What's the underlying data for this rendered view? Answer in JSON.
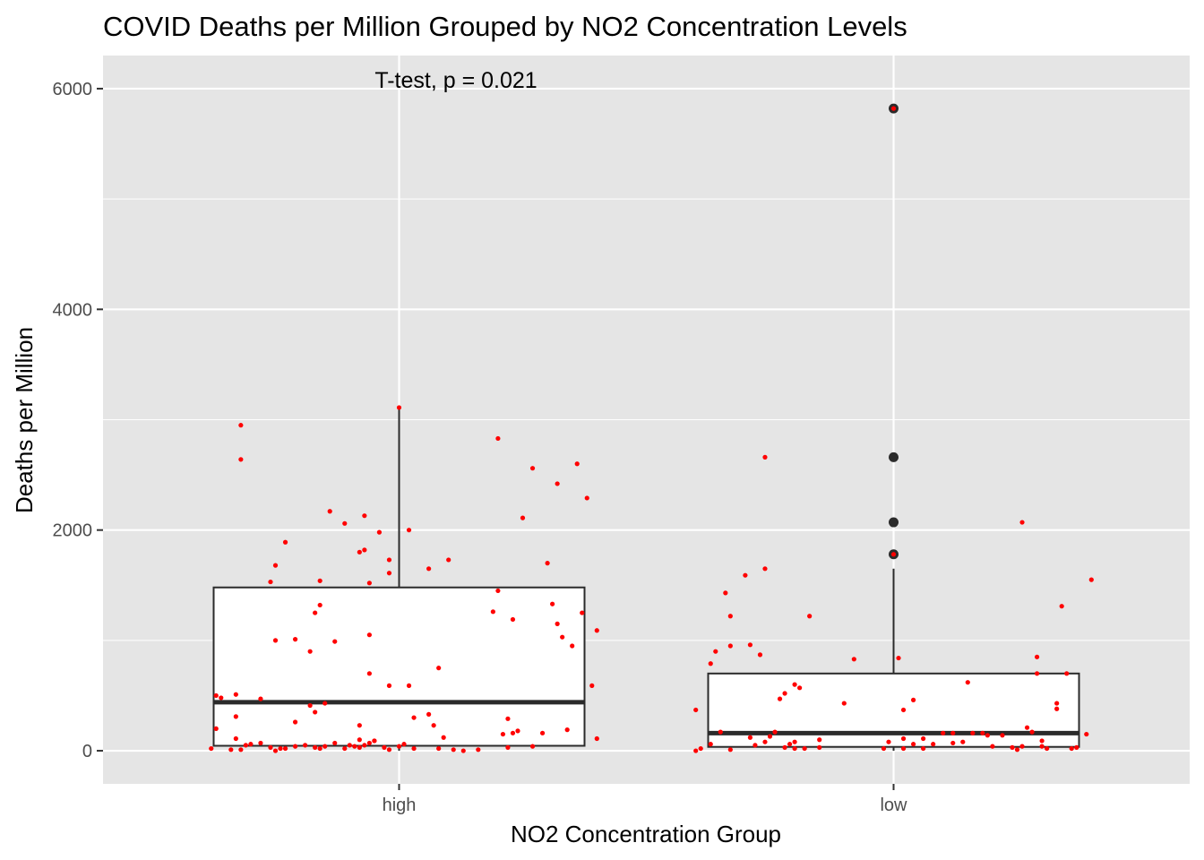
{
  "chart_data": {
    "type": "boxplot",
    "title": "COVID Deaths per Million Grouped by NO2 Concentration Levels",
    "xlabel": "NO2 Concentration Group",
    "ylabel": "Deaths per Million",
    "categories": [
      "high",
      "low"
    ],
    "ylim": [
      -300,
      6300
    ],
    "yticks": [
      0,
      2000,
      4000,
      6000
    ],
    "grid": true,
    "annotation": "T-test, p = 0.021",
    "colors": {
      "panel": "#e5e5e5",
      "grid": "#ffffff",
      "box_fill": "#ffffff",
      "box_line": "#2b2b2b",
      "jitter_points": "#ff0000",
      "outliers": "#2b2b2b"
    },
    "boxes": [
      {
        "category": "high",
        "q1": 45,
        "median": 440,
        "q3": 1480,
        "whisker_low": 0,
        "whisker_high": 3110,
        "outliers": []
      },
      {
        "category": "low",
        "q1": 35,
        "median": 160,
        "q3": 700,
        "whisker_low": 0,
        "whisker_high": 1650,
        "outliers": [
          5820,
          2660,
          2070,
          1780
        ]
      }
    ],
    "points": {
      "high": [
        {
          "x": -0.38,
          "y": 20
        },
        {
          "x": -0.37,
          "y": 200
        },
        {
          "x": -0.37,
          "y": 500
        },
        {
          "x": -0.36,
          "y": 480
        },
        {
          "x": -0.34,
          "y": 10
        },
        {
          "x": -0.33,
          "y": 510
        },
        {
          "x": -0.33,
          "y": 310
        },
        {
          "x": -0.33,
          "y": 110
        },
        {
          "x": -0.32,
          "y": 10
        },
        {
          "x": -0.32,
          "y": 2950
        },
        {
          "x": -0.32,
          "y": 2640
        },
        {
          "x": -0.31,
          "y": 50
        },
        {
          "x": -0.3,
          "y": 60
        },
        {
          "x": -0.28,
          "y": 470
        },
        {
          "x": -0.28,
          "y": 70
        },
        {
          "x": -0.26,
          "y": 30
        },
        {
          "x": -0.26,
          "y": 1530
        },
        {
          "x": -0.25,
          "y": 1680
        },
        {
          "x": -0.25,
          "y": 0
        },
        {
          "x": -0.25,
          "y": 1000
        },
        {
          "x": -0.24,
          "y": 20
        },
        {
          "x": -0.23,
          "y": 1890
        },
        {
          "x": -0.23,
          "y": 20
        },
        {
          "x": -0.21,
          "y": 40
        },
        {
          "x": -0.21,
          "y": 1010
        },
        {
          "x": -0.21,
          "y": 260
        },
        {
          "x": -0.19,
          "y": 50
        },
        {
          "x": -0.18,
          "y": 410
        },
        {
          "x": -0.18,
          "y": 900
        },
        {
          "x": -0.17,
          "y": 1250
        },
        {
          "x": -0.17,
          "y": 350
        },
        {
          "x": -0.17,
          "y": 30
        },
        {
          "x": -0.16,
          "y": 1320
        },
        {
          "x": -0.16,
          "y": 1540
        },
        {
          "x": -0.16,
          "y": 20
        },
        {
          "x": -0.15,
          "y": 430
        },
        {
          "x": -0.15,
          "y": 40
        },
        {
          "x": -0.14,
          "y": 2170
        },
        {
          "x": -0.13,
          "y": 990
        },
        {
          "x": -0.13,
          "y": 70
        },
        {
          "x": -0.11,
          "y": 2060
        },
        {
          "x": -0.11,
          "y": 20
        },
        {
          "x": -0.1,
          "y": 50
        },
        {
          "x": -0.09,
          "y": 40
        },
        {
          "x": -0.08,
          "y": 1800
        },
        {
          "x": -0.08,
          "y": 230
        },
        {
          "x": -0.08,
          "y": 100
        },
        {
          "x": -0.08,
          "y": 30
        },
        {
          "x": -0.07,
          "y": 50
        },
        {
          "x": -0.07,
          "y": 2130
        },
        {
          "x": -0.07,
          "y": 1820
        },
        {
          "x": -0.06,
          "y": 1520
        },
        {
          "x": -0.06,
          "y": 1050
        },
        {
          "x": -0.06,
          "y": 700
        },
        {
          "x": -0.06,
          "y": 70
        },
        {
          "x": -0.05,
          "y": 90
        },
        {
          "x": -0.05,
          "y": 90
        },
        {
          "x": -0.04,
          "y": 1980
        },
        {
          "x": -0.03,
          "y": 30
        },
        {
          "x": -0.02,
          "y": 1610
        },
        {
          "x": -0.02,
          "y": 1730
        },
        {
          "x": -0.02,
          "y": 590
        },
        {
          "x": -0.02,
          "y": 10
        },
        {
          "x": 0.0,
          "y": 3110
        },
        {
          "x": 0.0,
          "y": 40
        },
        {
          "x": 0.01,
          "y": 60
        },
        {
          "x": 0.02,
          "y": 2000
        },
        {
          "x": 0.02,
          "y": 590
        },
        {
          "x": 0.03,
          "y": 300
        },
        {
          "x": 0.03,
          "y": 20
        },
        {
          "x": 0.06,
          "y": 1650
        },
        {
          "x": 0.06,
          "y": 330
        },
        {
          "x": 0.07,
          "y": 230
        },
        {
          "x": 0.08,
          "y": 750
        },
        {
          "x": 0.08,
          "y": 20
        },
        {
          "x": 0.09,
          "y": 120
        },
        {
          "x": 0.1,
          "y": 1730
        },
        {
          "x": 0.11,
          "y": 10
        },
        {
          "x": 0.13,
          "y": 0
        },
        {
          "x": 0.16,
          "y": 10
        },
        {
          "x": 0.19,
          "y": 1260
        },
        {
          "x": 0.2,
          "y": 2830
        },
        {
          "x": 0.2,
          "y": 1450
        },
        {
          "x": 0.21,
          "y": 150
        },
        {
          "x": 0.22,
          "y": 290
        },
        {
          "x": 0.22,
          "y": 30
        },
        {
          "x": 0.23,
          "y": 1190
        },
        {
          "x": 0.23,
          "y": 160
        },
        {
          "x": 0.25,
          "y": 2110
        },
        {
          "x": 0.24,
          "y": 180
        },
        {
          "x": 0.27,
          "y": 40
        },
        {
          "x": 0.27,
          "y": 2560
        },
        {
          "x": 0.29,
          "y": 160
        },
        {
          "x": 0.3,
          "y": 1700
        },
        {
          "x": 0.31,
          "y": 1330
        },
        {
          "x": 0.32,
          "y": 2420
        },
        {
          "x": 0.32,
          "y": 1150
        },
        {
          "x": 0.33,
          "y": 1030
        },
        {
          "x": 0.34,
          "y": 190
        },
        {
          "x": 0.35,
          "y": 950
        },
        {
          "x": 0.36,
          "y": 2600
        },
        {
          "x": 0.37,
          "y": 1250
        },
        {
          "x": 0.38,
          "y": 2290
        },
        {
          "x": 0.39,
          "y": 590
        },
        {
          "x": 0.4,
          "y": 110
        },
        {
          "x": 0.4,
          "y": 1090
        }
      ],
      "low": [
        {
          "x": -0.4,
          "y": 0
        },
        {
          "x": -0.4,
          "y": 370
        },
        {
          "x": -0.39,
          "y": 20
        },
        {
          "x": -0.37,
          "y": 60
        },
        {
          "x": -0.36,
          "y": 900
        },
        {
          "x": -0.37,
          "y": 790
        },
        {
          "x": -0.35,
          "y": 170
        },
        {
          "x": -0.34,
          "y": 1430
        },
        {
          "x": -0.33,
          "y": 10
        },
        {
          "x": -0.33,
          "y": 1220
        },
        {
          "x": -0.33,
          "y": 950
        },
        {
          "x": -0.3,
          "y": 1590
        },
        {
          "x": -0.29,
          "y": 120
        },
        {
          "x": -0.29,
          "y": 960
        },
        {
          "x": -0.28,
          "y": 50
        },
        {
          "x": -0.27,
          "y": 870
        },
        {
          "x": -0.26,
          "y": 80
        },
        {
          "x": -0.26,
          "y": 2660
        },
        {
          "x": -0.26,
          "y": 1650
        },
        {
          "x": -0.25,
          "y": 130
        },
        {
          "x": -0.24,
          "y": 170
        },
        {
          "x": -0.23,
          "y": 470
        },
        {
          "x": -0.22,
          "y": 520
        },
        {
          "x": -0.22,
          "y": 30
        },
        {
          "x": -0.21,
          "y": 60
        },
        {
          "x": -0.2,
          "y": 600
        },
        {
          "x": -0.2,
          "y": 80
        },
        {
          "x": -0.2,
          "y": 20
        },
        {
          "x": -0.19,
          "y": 570
        },
        {
          "x": -0.18,
          "y": 20
        },
        {
          "x": -0.17,
          "y": 1220
        },
        {
          "x": -0.15,
          "y": 100
        },
        {
          "x": -0.15,
          "y": 30
        },
        {
          "x": -0.1,
          "y": 430
        },
        {
          "x": -0.08,
          "y": 830
        },
        {
          "x": -0.02,
          "y": 20
        },
        {
          "x": -0.01,
          "y": 80
        },
        {
          "x": 0.0,
          "y": 5820
        },
        {
          "x": 0.0,
          "y": 1780
        },
        {
          "x": 0.01,
          "y": 840
        },
        {
          "x": 0.02,
          "y": 370
        },
        {
          "x": 0.02,
          "y": 110
        },
        {
          "x": 0.02,
          "y": 20
        },
        {
          "x": 0.04,
          "y": 460
        },
        {
          "x": 0.04,
          "y": 60
        },
        {
          "x": 0.06,
          "y": 110
        },
        {
          "x": 0.06,
          "y": 20
        },
        {
          "x": 0.08,
          "y": 60
        },
        {
          "x": 0.1,
          "y": 160
        },
        {
          "x": 0.12,
          "y": 160
        },
        {
          "x": 0.12,
          "y": 70
        },
        {
          "x": 0.14,
          "y": 80
        },
        {
          "x": 0.15,
          "y": 620
        },
        {
          "x": 0.16,
          "y": 160
        },
        {
          "x": 0.18,
          "y": 160
        },
        {
          "x": 0.19,
          "y": 140
        },
        {
          "x": 0.2,
          "y": 40
        },
        {
          "x": 0.22,
          "y": 140
        },
        {
          "x": 0.24,
          "y": 30
        },
        {
          "x": 0.25,
          "y": 10
        },
        {
          "x": 0.26,
          "y": 40
        },
        {
          "x": 0.26,
          "y": 2070
        },
        {
          "x": 0.27,
          "y": 210
        },
        {
          "x": 0.28,
          "y": 170
        },
        {
          "x": 0.29,
          "y": 700
        },
        {
          "x": 0.29,
          "y": 850
        },
        {
          "x": 0.3,
          "y": 90
        },
        {
          "x": 0.3,
          "y": 40
        },
        {
          "x": 0.31,
          "y": 20
        },
        {
          "x": 0.33,
          "y": 430
        },
        {
          "x": 0.33,
          "y": 380
        },
        {
          "x": 0.34,
          "y": 1310
        },
        {
          "x": 0.35,
          "y": 700
        },
        {
          "x": 0.36,
          "y": 20
        },
        {
          "x": 0.37,
          "y": 30
        },
        {
          "x": 0.39,
          "y": 150
        },
        {
          "x": 0.4,
          "y": 1550
        }
      ]
    }
  }
}
